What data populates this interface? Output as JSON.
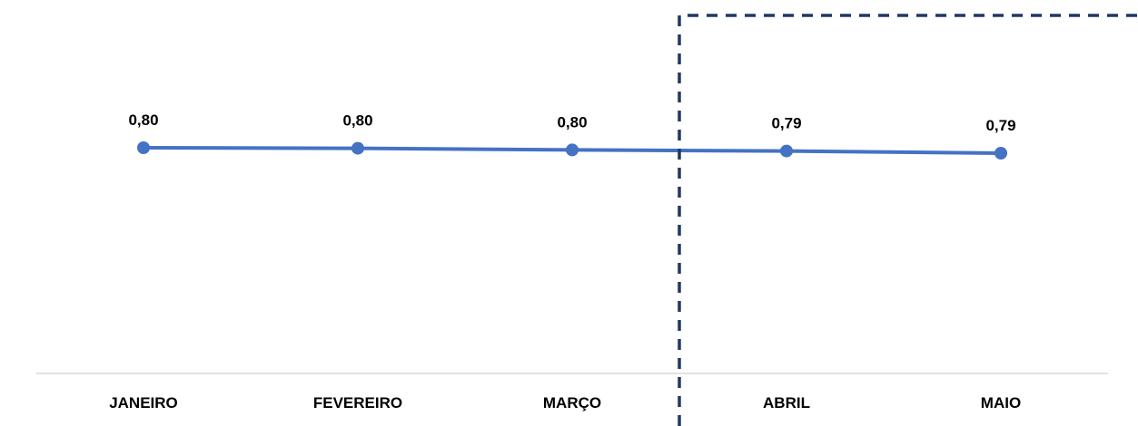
{
  "chart_data": {
    "type": "line",
    "title": "",
    "xlabel": "",
    "ylabel": "",
    "categories": [
      "JANEIRO",
      "FEVEREIRO",
      "MARÇO",
      "ABRIL",
      "MAIO"
    ],
    "series": [
      {
        "values": [
          0.8,
          0.8,
          0.8,
          0.79,
          0.79
        ],
        "data_labels": [
          "0,80",
          "0,80",
          "0,80",
          "0,79",
          "0,79"
        ]
      }
    ],
    "ylim": [
      0.75,
      0.82
    ],
    "grid": false,
    "legend": "none",
    "highlight_region": {
      "from_category": "ABRIL",
      "to_category": "MAIO",
      "style": "dashed-box"
    },
    "colors": {
      "series": "#4472C4",
      "axis": "#D9D9D9",
      "highlight_border": "#203864"
    }
  }
}
